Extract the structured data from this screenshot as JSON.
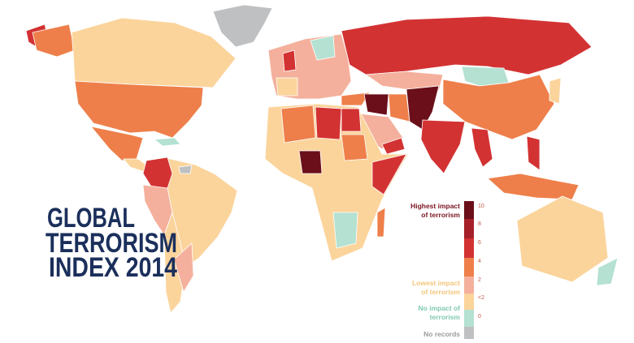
{
  "title": {
    "lines": [
      "GLOBAL",
      "TERRORISM",
      "INDEX 2014"
    ]
  },
  "legend": {
    "groups": [
      {
        "lines": [
          "Highest impact",
          "of terrorism"
        ]
      },
      {
        "lines": [
          "Lowest impact",
          "of terrorism"
        ]
      },
      {
        "lines": [
          "No impact of",
          "terrorism"
        ]
      },
      {
        "lines": [
          "No records"
        ]
      }
    ],
    "scale": [
      "10",
      "8",
      "6",
      "4",
      "2",
      "<2",
      "0"
    ]
  }
}
